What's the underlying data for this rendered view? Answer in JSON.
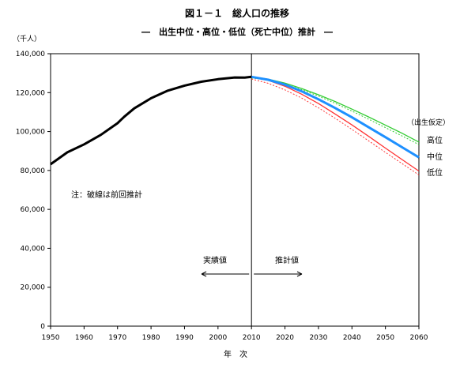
{
  "chart_data": {
    "type": "line",
    "title": "図１－１　総人口の推移",
    "subtitle": "―　出生中位・高位・低位（死亡中位）推計　―",
    "ylabel": "（千人）",
    "xlabel": "年　次",
    "xlim": [
      1950,
      2060
    ],
    "ylim": [
      0,
      140000
    ],
    "x_ticks": [
      1950,
      1960,
      1970,
      1980,
      1990,
      2000,
      2010,
      2020,
      2030,
      2040,
      2050,
      2060
    ],
    "y_ticks": [
      0,
      20000,
      40000,
      60000,
      80000,
      100000,
      120000,
      140000
    ],
    "y_tick_labels": [
      "0",
      "20,000",
      "40,000",
      "60,000",
      "80,000",
      "100,000",
      "120,000",
      "140,000"
    ],
    "grid": false,
    "legend_title": "（出生仮定）",
    "note": "注：破線は前回推計",
    "annotations": {
      "actual": "実績値",
      "projection": "推計値",
      "divider_year": 2010
    },
    "series": [
      {
        "name": "",
        "style": "solid",
        "color": "#000000",
        "x": [
          1950,
          1955,
          1960,
          1965,
          1970,
          1971,
          1972,
          1975,
          1980,
          1985,
          1990,
          1995,
          2000,
          2005,
          2008,
          2010
        ],
        "y": [
          83200,
          89300,
          93400,
          98300,
          104300,
          106000,
          107600,
          111900,
          117100,
          121000,
          123600,
          125600,
          126900,
          127800,
          127700,
          128100
        ]
      },
      {
        "name": "高位",
        "style": "solid",
        "color": "#33cc33",
        "x": [
          2010,
          2015,
          2020,
          2025,
          2030,
          2035,
          2040,
          2045,
          2050,
          2055,
          2060
        ],
        "y": [
          128100,
          126900,
          124900,
          122100,
          118900,
          115400,
          111500,
          107500,
          103300,
          99100,
          94600
        ]
      },
      {
        "name": "中位",
        "style": "solid",
        "color": "#1e90ff",
        "x": [
          2010,
          2015,
          2020,
          2025,
          2030,
          2035,
          2040,
          2045,
          2050,
          2055,
          2060
        ],
        "y": [
          128100,
          126600,
          124100,
          120700,
          116600,
          112100,
          107300,
          102200,
          97100,
          91900,
          86700
        ]
      },
      {
        "name": "低位",
        "style": "solid",
        "color": "#ff3333",
        "x": [
          2010,
          2015,
          2020,
          2025,
          2030,
          2035,
          2040,
          2045,
          2050,
          2055,
          2060
        ],
        "y": [
          128100,
          126300,
          123300,
          119200,
          114400,
          109000,
          103400,
          97500,
          91500,
          85600,
          79700
        ]
      },
      {
        "name": "",
        "style": "dashed",
        "color": "#33cc33",
        "x": [
          2010,
          2015,
          2020,
          2025,
          2030,
          2035,
          2040,
          2045,
          2050,
          2055,
          2060
        ],
        "y": [
          127500,
          126400,
          124300,
          121500,
          118200,
          114500,
          110500,
          106300,
          102000,
          97700,
          93300
        ]
      },
      {
        "name": "",
        "style": "dashed",
        "color": "#ff3333",
        "x": [
          2010,
          2015,
          2020,
          2025,
          2030,
          2035,
          2040,
          2045,
          2050,
          2055,
          2060
        ],
        "y": [
          127000,
          124800,
          121400,
          117200,
          112200,
          106800,
          101100,
          95200,
          89300,
          83500,
          77700
        ]
      }
    ]
  }
}
